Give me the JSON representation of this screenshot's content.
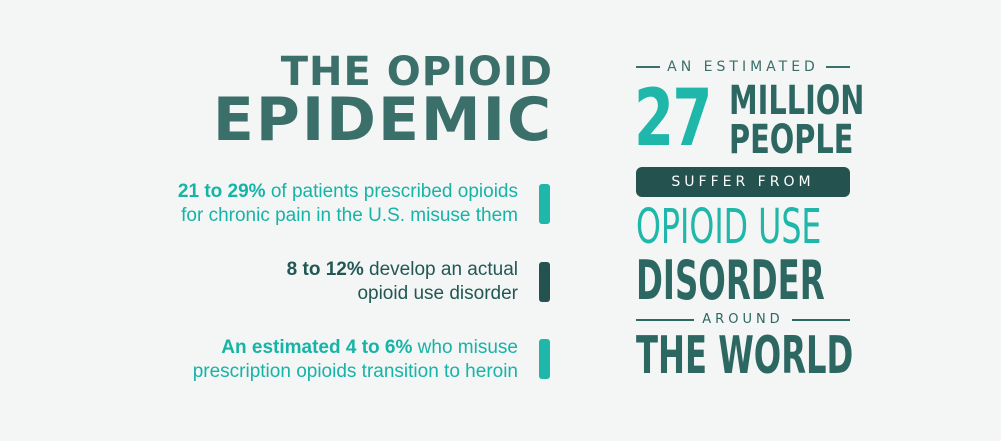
{
  "title": {
    "line1": "THE OPIOID",
    "line2": "EPIDEMIC"
  },
  "stats": [
    {
      "highlight": "21 to 29%",
      "line1_rest": " of patients prescribed opioids",
      "line2": "for chronic pain in the U.S. misuse them"
    },
    {
      "highlight": "8 to 12%",
      "line1_rest": " develop an actual",
      "line2": "opioid use disorder"
    },
    {
      "highlight": "An estimated 4 to 6%",
      "line1_rest": " who misuse",
      "line2": "prescription opioids transition to heroin"
    }
  ],
  "callout": {
    "estimated": "AN ESTIMATED",
    "number": "27",
    "million": "MILLION",
    "people": "PEOPLE",
    "suffer_from": "SUFFER FROM",
    "opioid_use": "OPIOID USE",
    "disorder": "DISORDER",
    "around": "AROUND",
    "the_world": "THE WORLD"
  },
  "colors": {
    "teal": "#1fb7a9",
    "dark_teal": "#24524f",
    "mid_teal": "#3a6f6a",
    "background": "#f4f5f5"
  }
}
